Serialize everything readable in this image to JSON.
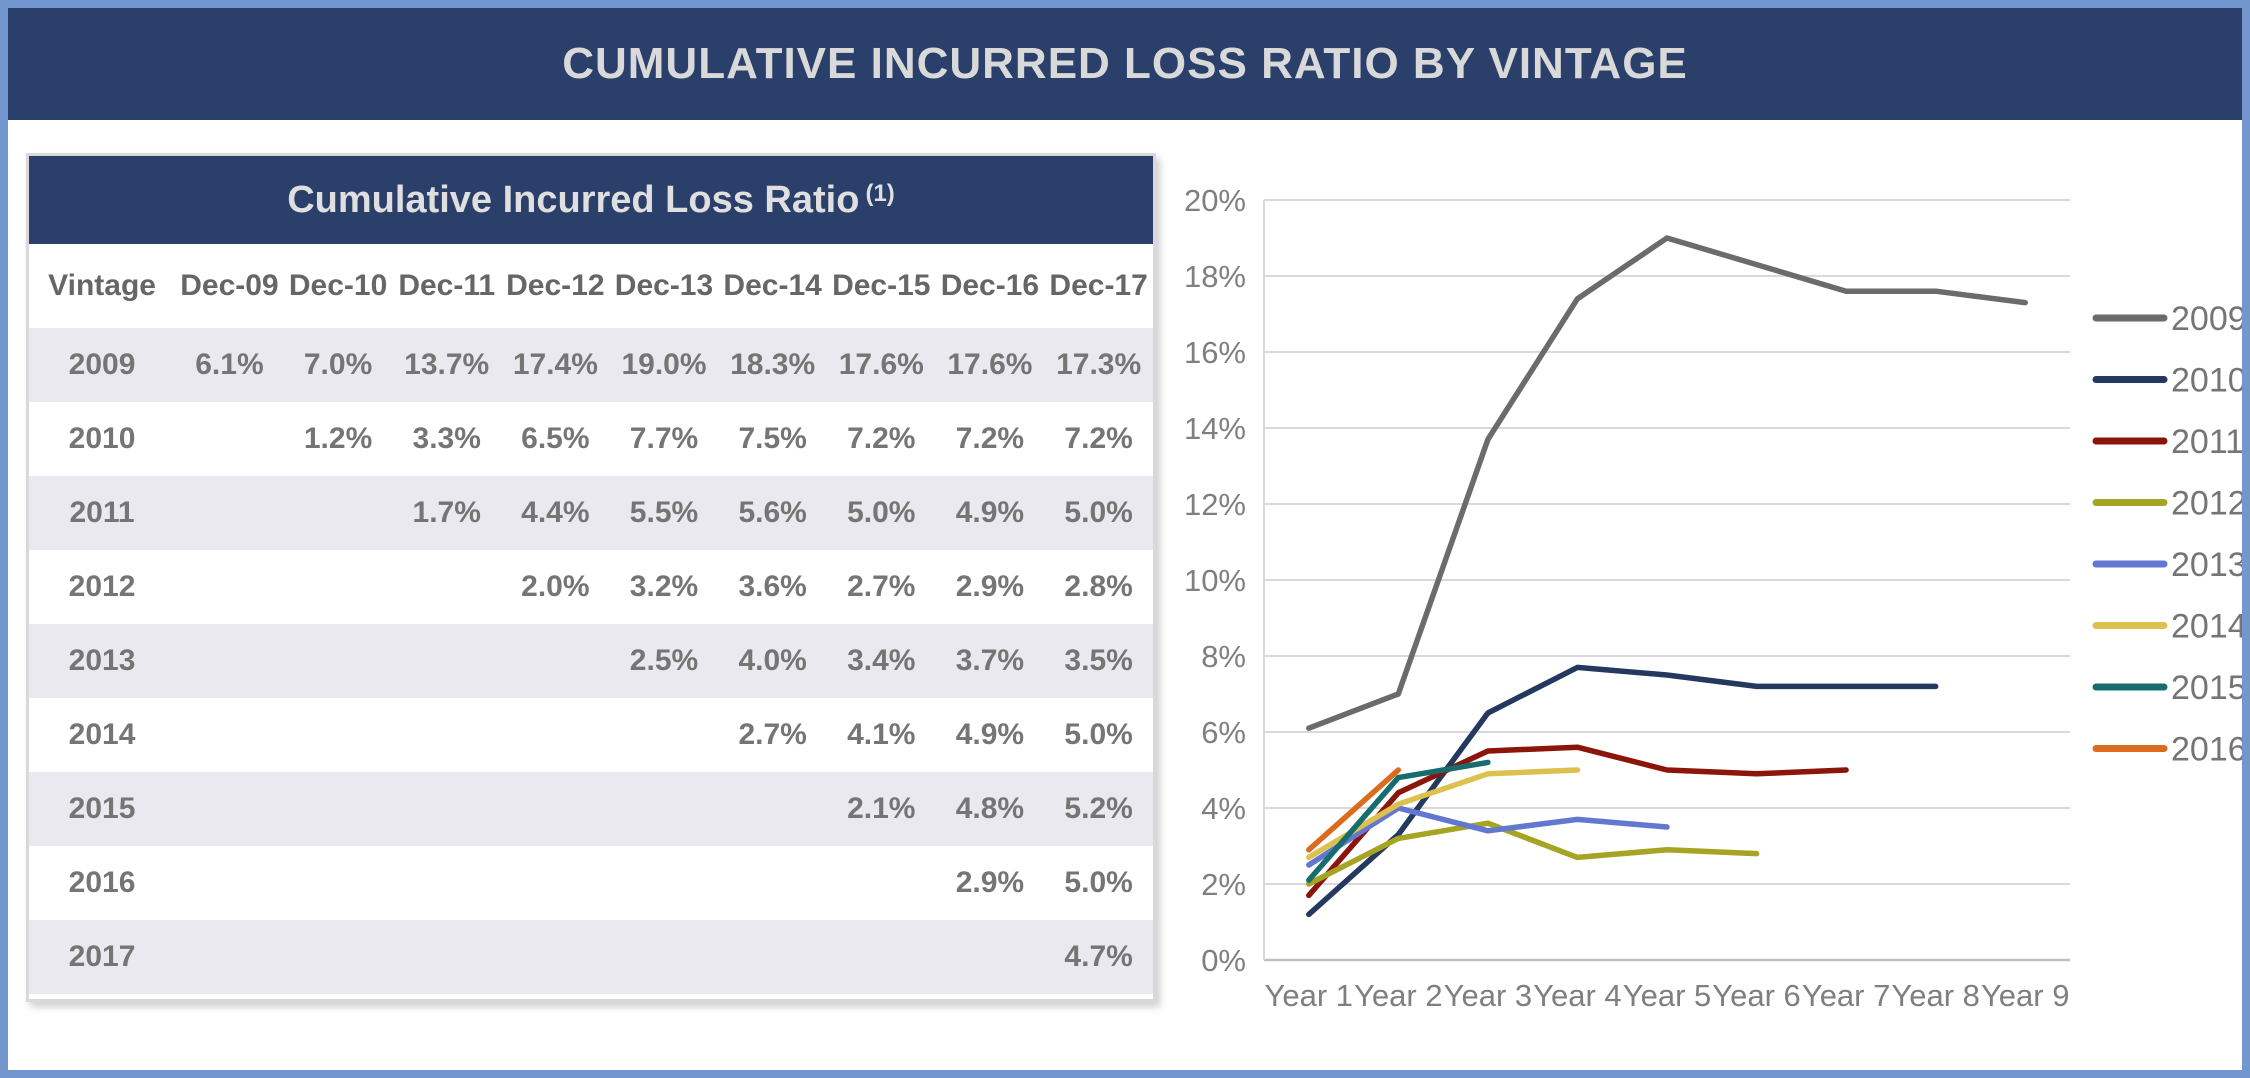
{
  "header": {
    "title": "CUMULATIVE INCURRED LOSS RATIO BY VINTAGE"
  },
  "table": {
    "title": "Cumulative Incurred Loss Ratio",
    "title_superscript": "(1)",
    "columns": [
      "Vintage",
      "Dec-09",
      "Dec-10",
      "Dec-11",
      "Dec-12",
      "Dec-13",
      "Dec-14",
      "Dec-15",
      "Dec-16",
      "Dec-17"
    ],
    "rows": [
      {
        "vintage": "2009",
        "values": [
          "6.1%",
          "7.0%",
          "13.7%",
          "17.4%",
          "19.0%",
          "18.3%",
          "17.6%",
          "17.6%",
          "17.3%"
        ]
      },
      {
        "vintage": "2010",
        "values": [
          "",
          "1.2%",
          "3.3%",
          "6.5%",
          "7.7%",
          "7.5%",
          "7.2%",
          "7.2%",
          "7.2%"
        ]
      },
      {
        "vintage": "2011",
        "values": [
          "",
          "",
          "1.7%",
          "4.4%",
          "5.5%",
          "5.6%",
          "5.0%",
          "4.9%",
          "5.0%"
        ]
      },
      {
        "vintage": "2012",
        "values": [
          "",
          "",
          "",
          "2.0%",
          "3.2%",
          "3.6%",
          "2.7%",
          "2.9%",
          "2.8%"
        ]
      },
      {
        "vintage": "2013",
        "values": [
          "",
          "",
          "",
          "",
          "2.5%",
          "4.0%",
          "3.4%",
          "3.7%",
          "3.5%"
        ]
      },
      {
        "vintage": "2014",
        "values": [
          "",
          "",
          "",
          "",
          "",
          "2.7%",
          "4.1%",
          "4.9%",
          "5.0%"
        ]
      },
      {
        "vintage": "2015",
        "values": [
          "",
          "",
          "",
          "",
          "",
          "",
          "2.1%",
          "4.8%",
          "5.2%"
        ]
      },
      {
        "vintage": "2016",
        "values": [
          "",
          "",
          "",
          "",
          "",
          "",
          "",
          "2.9%",
          "5.0%"
        ]
      },
      {
        "vintage": "2017",
        "values": [
          "",
          "",
          "",
          "",
          "",
          "",
          "",
          "",
          "4.7%"
        ]
      }
    ]
  },
  "chart_data": {
    "type": "line",
    "x": [
      "Year 1",
      "Year 2",
      "Year 3",
      "Year 4",
      "Year 5",
      "Year 6",
      "Year 7",
      "Year 8",
      "Year 9"
    ],
    "ylim": [
      0,
      20
    ],
    "y_tick_step": 2,
    "y_tick_suffix": "%",
    "grid": true,
    "legend_position": "right",
    "series": [
      {
        "name": "2009",
        "color": "#6B6B6B",
        "values": [
          6.1,
          7.0,
          13.7,
          17.4,
          19.0,
          18.3,
          17.6,
          17.6,
          17.3
        ]
      },
      {
        "name": "2010",
        "color": "#24395F",
        "values": [
          1.2,
          3.3,
          6.5,
          7.7,
          7.5,
          7.2,
          7.2,
          7.2
        ]
      },
      {
        "name": "2011",
        "color": "#8B150B",
        "values": [
          1.7,
          4.4,
          5.5,
          5.6,
          5.0,
          4.9,
          5.0
        ]
      },
      {
        "name": "2012",
        "color": "#A6A423",
        "values": [
          2.0,
          3.2,
          3.6,
          2.7,
          2.9,
          2.8
        ]
      },
      {
        "name": "2013",
        "color": "#6377D0",
        "values": [
          2.5,
          4.0,
          3.4,
          3.7,
          3.5
        ]
      },
      {
        "name": "2014",
        "color": "#DCC14F",
        "values": [
          2.7,
          4.1,
          4.9,
          5.0
        ]
      },
      {
        "name": "2015",
        "color": "#176C6E",
        "values": [
          2.1,
          4.8,
          5.2
        ]
      },
      {
        "name": "2016",
        "color": "#DB6B1F",
        "values": [
          2.9,
          5.0
        ]
      }
    ]
  },
  "colors": {
    "frame_border": "#7296CE",
    "header_background": "#2B3F6B",
    "header_text": "#D9D9D9",
    "table_alt_row": "#E9E9EF",
    "table_border": "#D9D9D9",
    "gridline": "#D9D9D9",
    "axis_line": "#BFBFBF",
    "tick_text": "#7F7F7F",
    "legend_text": "#757575"
  }
}
